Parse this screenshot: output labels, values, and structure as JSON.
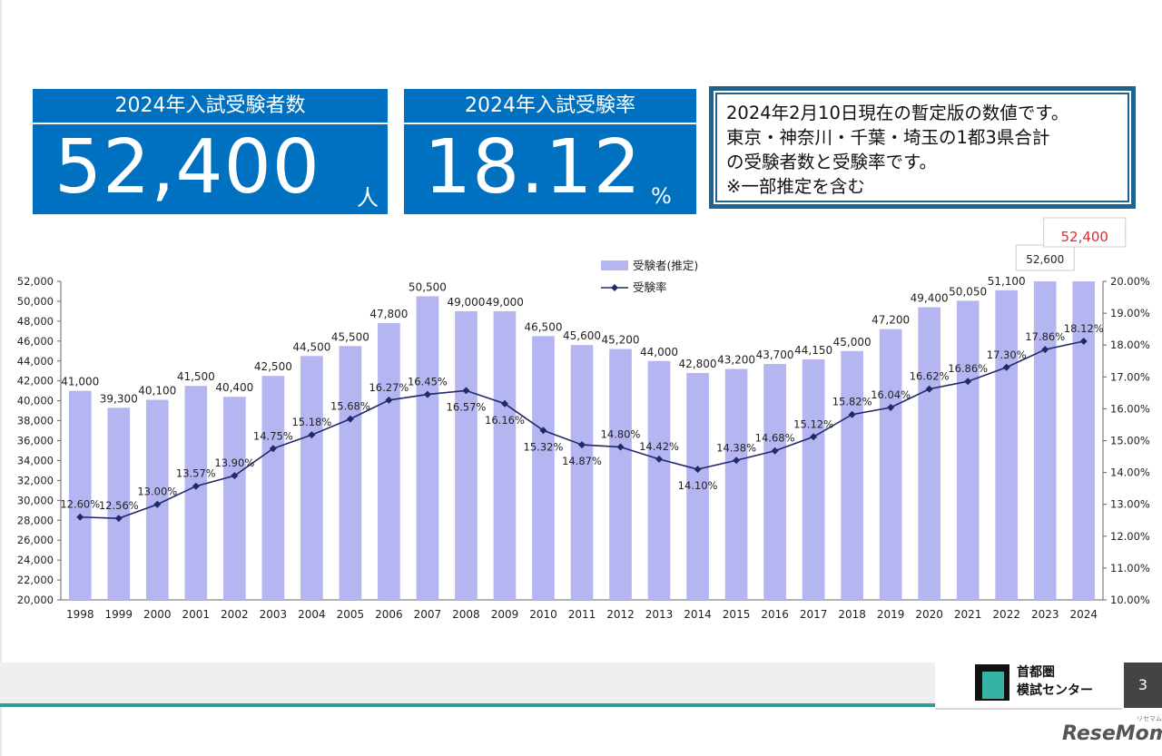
{
  "kpi_exam_count": {
    "label": "2024年入試受験者数",
    "value": "52,400",
    "unit": "人"
  },
  "kpi_exam_rate": {
    "label": "2024年入試受験率",
    "value": "18.12",
    "unit": "%"
  },
  "note": {
    "lines": [
      "2024年2月10日現在の暫定版の数値です。",
      "東京・神奈川・千葉・埼玉の1都3県合計",
      "の受験者数と受験率です。",
      "※一部推定を含む"
    ]
  },
  "chart_data": {
    "type": "bar",
    "categories": [
      "1998",
      "1999",
      "2000",
      "2001",
      "2002",
      "2003",
      "2004",
      "2005",
      "2006",
      "2007",
      "2008",
      "2009",
      "2010",
      "2011",
      "2012",
      "2013",
      "2014",
      "2015",
      "2016",
      "2017",
      "2018",
      "2019",
      "2020",
      "2021",
      "2022",
      "2023",
      "2024"
    ],
    "series": [
      {
        "name": "受験者(推定)",
        "type": "bar",
        "axis": "left",
        "color": "#b5b5f2",
        "values": [
          41000,
          39300,
          40100,
          41500,
          40400,
          42500,
          44500,
          45500,
          47800,
          50500,
          49000,
          49000,
          46500,
          45600,
          45200,
          44000,
          42800,
          43200,
          43700,
          44150,
          45000,
          47200,
          49400,
          50050,
          51100,
          52600,
          52400
        ],
        "labels": [
          "41,000",
          "39,300",
          "40,100",
          "41,500",
          "40,400",
          "42,500",
          "44,500",
          "45,500",
          "47,800",
          "50,500",
          "49,000",
          "49,000",
          "46,500",
          "45,600",
          "45,200",
          "44,000",
          "42,800",
          "43,200",
          "43,700",
          "44,150",
          "45,000",
          "47,200",
          "49,400",
          "50,050",
          "51,100",
          "52,600",
          "52,400"
        ]
      },
      {
        "name": "受験率",
        "type": "line",
        "axis": "right",
        "color": "#1f2a6b",
        "values": [
          12.6,
          12.56,
          13.0,
          13.57,
          13.9,
          14.75,
          15.18,
          15.68,
          16.27,
          16.45,
          16.57,
          16.16,
          15.32,
          14.87,
          14.8,
          14.42,
          14.1,
          14.38,
          14.68,
          15.12,
          15.82,
          16.04,
          16.62,
          16.86,
          17.3,
          17.86,
          18.12
        ],
        "labels": [
          "12.60%",
          "12.56%",
          "13.00%",
          "13.57%",
          "13.90%",
          "14.75%",
          "15.18%",
          "15.68%",
          "16.27%",
          "16.45%",
          "16.57%",
          "16.16%",
          "15.32%",
          "14.87%",
          "14.80%",
          "14.42%",
          "14.10%",
          "14.38%",
          "14.68%",
          "15.12%",
          "15.82%",
          "16.04%",
          "16.62%",
          "16.86%",
          "17.30%",
          "17.86%",
          "18.12%"
        ]
      }
    ],
    "y_left": {
      "min": 20000,
      "max": 52000,
      "step": 2000,
      "ticks": [
        "20,000",
        "22,000",
        "24,000",
        "26,000",
        "28,000",
        "30,000",
        "32,000",
        "34,000",
        "36,000",
        "38,000",
        "40,000",
        "42,000",
        "44,000",
        "46,000",
        "48,000",
        "50,000",
        "52,000"
      ]
    },
    "y_right": {
      "min": 10,
      "max": 20,
      "step": 1,
      "ticks": [
        "10.00%",
        "11.00%",
        "12.00%",
        "13.00%",
        "14.00%",
        "15.00%",
        "16.00%",
        "17.00%",
        "18.00%",
        "19.00%",
        "20.00%"
      ]
    },
    "legend": {
      "position": "top-center"
    },
    "grid": false,
    "highlight": {
      "text": "52,400",
      "color": "#e0282e"
    }
  },
  "footer": {
    "logo_line1": "首都圏",
    "logo_line2": "模試センター",
    "page": "3"
  },
  "watermark": {
    "text": "ReseMom",
    "small": "リセマム"
  }
}
